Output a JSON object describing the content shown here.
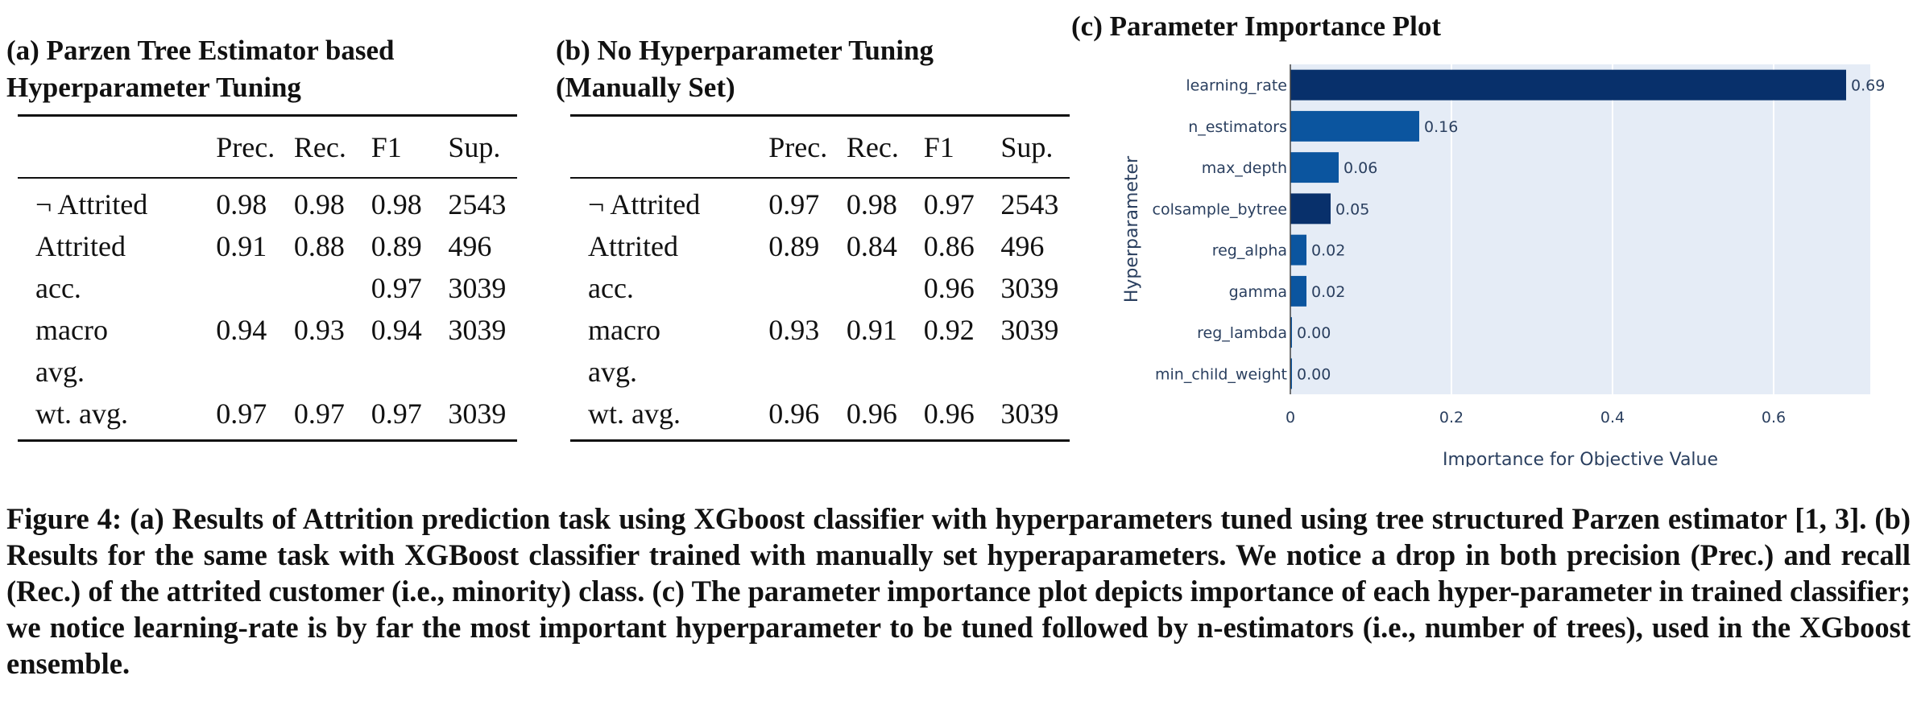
{
  "panel_a": {
    "title_line1": "(a) Parzen Tree Estimator based",
    "title_line2": "Hyperparameter Tuning",
    "headers": [
      "",
      "Prec.",
      "Rec.",
      "F1",
      "Sup."
    ],
    "rows": [
      [
        "¬ Attrited",
        "0.98",
        "0.98",
        "0.98",
        "2543"
      ],
      [
        "Attrited",
        "0.91",
        "0.88",
        "0.89",
        "496"
      ],
      [
        "acc.",
        "",
        "",
        "0.97",
        "3039"
      ],
      [
        "macro",
        "0.94",
        "0.93",
        "0.94",
        "3039"
      ],
      [
        "avg.",
        "",
        "",
        "",
        ""
      ],
      [
        "wt. avg.",
        "0.97",
        "0.97",
        "0.97",
        "3039"
      ]
    ]
  },
  "panel_b": {
    "title_line1": "(b) No Hyperparameter Tuning",
    "title_line2": "(Manually Set)",
    "headers": [
      "",
      "Prec.",
      "Rec.",
      "F1",
      "Sup."
    ],
    "rows": [
      [
        "¬ Attrited",
        "0.97",
        "0.98",
        "0.97",
        "2543"
      ],
      [
        "Attrited",
        "0.89",
        "0.84",
        "0.86",
        "496"
      ],
      [
        "acc.",
        "",
        "",
        "0.96",
        "3039"
      ],
      [
        "macro",
        "0.93",
        "0.91",
        "0.92",
        "3039"
      ],
      [
        "avg.",
        "",
        "",
        "",
        ""
      ],
      [
        "wt. avg.",
        "0.96",
        "0.96",
        "0.96",
        "3039"
      ]
    ]
  },
  "chart_data": {
    "type": "bar",
    "orientation": "horizontal",
    "title": "(c) Parameter Importance Plot",
    "xlabel": "Importance for Objective Value",
    "ylabel": "Hyperparameter",
    "categories": [
      "learning_rate",
      "n_estimators",
      "max_depth",
      "colsample_bytree",
      "reg_alpha",
      "gamma",
      "reg_lambda",
      "min_child_weight"
    ],
    "values": [
      0.69,
      0.16,
      0.06,
      0.05,
      0.02,
      0.02,
      0.0,
      0.0
    ],
    "value_labels": [
      "0.69",
      "0.16",
      "0.06",
      "0.05",
      "0.02",
      "0.02",
      "0.00",
      "0.00"
    ],
    "bar_colors": [
      "#08306b",
      "#0b559f",
      "#0b559f",
      "#08306b",
      "#0b559f",
      "#0b559f",
      "#0b559f",
      "#0b559f"
    ],
    "xticks": [
      0,
      0.2,
      0.4,
      0.6
    ],
    "xtick_labels": [
      "0",
      "0.2",
      "0.4",
      "0.6"
    ],
    "xlim": [
      0,
      0.72
    ],
    "grid": true,
    "plot_background": "#e5ecf6"
  },
  "caption": "Figure 4: (a) Results of Attrition prediction task using XGboost classifier with hyperparameters tuned using tree structured Parzen estimator [1, 3]. (b) Results for the same task with XGBoost classifier trained with manually set hyperaparameters. We notice a drop in both precision (Prec.) and recall (Rec.) of the attrited customer (i.e., minority) class. (c) The parameter importance plot depicts importance of each hyper-parameter in trained classifier; we notice learning-rate is by far the most important hyperparameter to be tuned followed by n-estimators (i.e., number of trees), used in the XGboost ensemble."
}
